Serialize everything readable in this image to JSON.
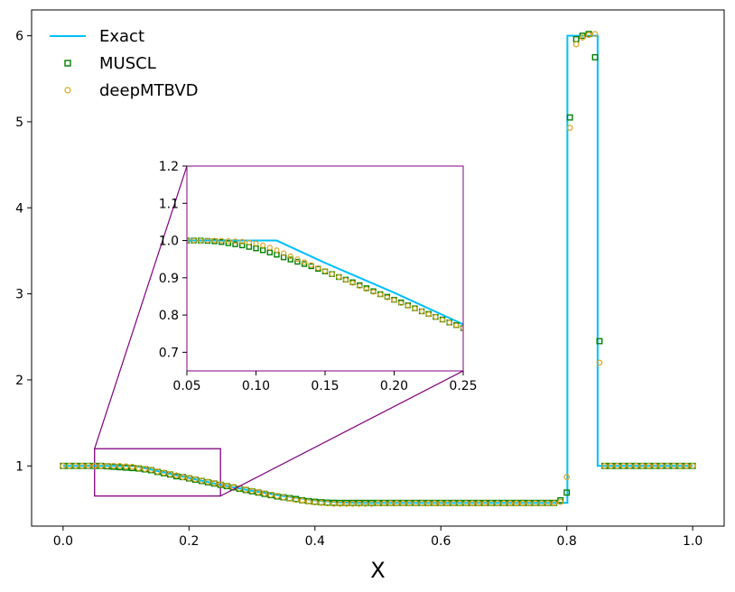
{
  "chart_data": [
    {
      "type": "line",
      "panel": "main",
      "xlabel": "X",
      "ylabel": "",
      "xlim": [
        -0.05,
        1.05
      ],
      "ylim": [
        0.3,
        6.3
      ],
      "xticks": [
        0.0,
        0.2,
        0.4,
        0.6,
        0.8,
        1.0
      ],
      "xtick_labels": [
        "0.0",
        "0.2",
        "0.4",
        "0.6",
        "0.8",
        "1.0"
      ],
      "yticks": [
        1,
        2,
        3,
        4,
        5,
        6
      ],
      "ytick_labels": [
        "1",
        "2",
        "3",
        "4",
        "5",
        "6"
      ],
      "grid": false,
      "legend": "upper-left",
      "series": [
        {
          "name": "Exact",
          "style": "line",
          "color": "#00bfff",
          "x": [
            0.0,
            0.115,
            0.15,
            0.2,
            0.25,
            0.3,
            0.35,
            0.4,
            0.44,
            0.47,
            0.5,
            0.6,
            0.7,
            0.79,
            0.801,
            0.801,
            0.849,
            0.849,
            1.0
          ],
          "y": [
            1.0,
            1.0,
            0.94,
            0.86,
            0.78,
            0.71,
            0.65,
            0.6,
            0.575,
            0.57,
            0.57,
            0.57,
            0.57,
            0.57,
            0.57,
            6.0,
            6.0,
            1.0,
            1.0
          ]
        },
        {
          "name": "MUSCL",
          "style": "marker",
          "marker": "square",
          "color": "#008000",
          "x": [
            0.0,
            0.01,
            0.02,
            0.03,
            0.04,
            0.05,
            0.06,
            0.07,
            0.08,
            0.09,
            0.1,
            0.11,
            0.12,
            0.13,
            0.14,
            0.15,
            0.16,
            0.17,
            0.18,
            0.19,
            0.2,
            0.21,
            0.22,
            0.23,
            0.24,
            0.25,
            0.26,
            0.27,
            0.28,
            0.29,
            0.3,
            0.31,
            0.32,
            0.33,
            0.34,
            0.35,
            0.36,
            0.37,
            0.38,
            0.39,
            0.4,
            0.41,
            0.42,
            0.43,
            0.44,
            0.45,
            0.46,
            0.47,
            0.48,
            0.49,
            0.5,
            0.51,
            0.52,
            0.53,
            0.54,
            0.55,
            0.56,
            0.57,
            0.58,
            0.59,
            0.6,
            0.61,
            0.62,
            0.63,
            0.64,
            0.65,
            0.66,
            0.67,
            0.68,
            0.69,
            0.7,
            0.71,
            0.72,
            0.73,
            0.74,
            0.75,
            0.76,
            0.77,
            0.78,
            0.79,
            0.8,
            0.805,
            0.815,
            0.825,
            0.835,
            0.845,
            0.852,
            0.86,
            0.87,
            0.88,
            0.89,
            0.9,
            0.91,
            0.92,
            0.93,
            0.94,
            0.95,
            0.96,
            0.97,
            0.98,
            0.99,
            1.0
          ],
          "y": [
            1.0,
            1.0,
            1.0,
            1.0,
            1.0,
            1.0,
            1.0,
            0.995,
            0.99,
            0.985,
            0.98,
            0.975,
            0.97,
            0.96,
            0.95,
            0.93,
            0.915,
            0.9,
            0.88,
            0.87,
            0.855,
            0.84,
            0.825,
            0.81,
            0.795,
            0.78,
            0.765,
            0.75,
            0.735,
            0.72,
            0.705,
            0.69,
            0.675,
            0.66,
            0.645,
            0.635,
            0.625,
            0.615,
            0.6,
            0.59,
            0.583,
            0.577,
            0.573,
            0.571,
            0.57,
            0.57,
            0.57,
            0.57,
            0.57,
            0.57,
            0.57,
            0.57,
            0.57,
            0.57,
            0.57,
            0.57,
            0.57,
            0.57,
            0.57,
            0.57,
            0.57,
            0.57,
            0.57,
            0.57,
            0.57,
            0.57,
            0.57,
            0.57,
            0.57,
            0.57,
            0.57,
            0.57,
            0.57,
            0.57,
            0.57,
            0.57,
            0.57,
            0.57,
            0.57,
            0.6,
            0.69,
            5.05,
            5.96,
            6.0,
            6.02,
            5.75,
            2.45,
            1.0,
            1.0,
            1.0,
            1.0,
            1.0,
            1.0,
            1.0,
            1.0,
            1.0,
            1.0,
            1.0,
            1.0,
            1.0,
            1.0,
            1.0
          ]
        },
        {
          "name": "deepMTBVD",
          "style": "marker",
          "marker": "circle",
          "color": "#daa520",
          "x": [
            0.0,
            0.01,
            0.02,
            0.03,
            0.04,
            0.05,
            0.06,
            0.07,
            0.08,
            0.09,
            0.1,
            0.11,
            0.12,
            0.13,
            0.14,
            0.15,
            0.16,
            0.17,
            0.18,
            0.19,
            0.2,
            0.21,
            0.22,
            0.23,
            0.24,
            0.25,
            0.26,
            0.27,
            0.28,
            0.29,
            0.3,
            0.31,
            0.32,
            0.33,
            0.34,
            0.35,
            0.36,
            0.37,
            0.38,
            0.39,
            0.4,
            0.41,
            0.42,
            0.43,
            0.44,
            0.45,
            0.46,
            0.47,
            0.48,
            0.49,
            0.5,
            0.51,
            0.52,
            0.53,
            0.54,
            0.55,
            0.56,
            0.57,
            0.58,
            0.59,
            0.6,
            0.61,
            0.62,
            0.63,
            0.64,
            0.65,
            0.66,
            0.67,
            0.68,
            0.69,
            0.7,
            0.71,
            0.72,
            0.73,
            0.74,
            0.75,
            0.76,
            0.77,
            0.78,
            0.79,
            0.8,
            0.805,
            0.815,
            0.825,
            0.835,
            0.845,
            0.852,
            0.86,
            0.87,
            0.88,
            0.89,
            0.9,
            0.91,
            0.92,
            0.93,
            0.94,
            0.95,
            0.96,
            0.97,
            0.98,
            0.99,
            1.0
          ],
          "y": [
            1.0,
            1.0,
            1.0,
            1.0,
            1.0,
            1.0,
            1.0,
            1.0,
            1.0,
            1.0,
            0.995,
            0.99,
            0.975,
            0.965,
            0.955,
            0.935,
            0.92,
            0.905,
            0.89,
            0.87,
            0.86,
            0.845,
            0.83,
            0.815,
            0.8,
            0.785,
            0.77,
            0.755,
            0.74,
            0.725,
            0.71,
            0.695,
            0.68,
            0.665,
            0.65,
            0.635,
            0.62,
            0.605,
            0.595,
            0.585,
            0.575,
            0.57,
            0.565,
            0.56,
            0.56,
            0.56,
            0.56,
            0.56,
            0.56,
            0.56,
            0.565,
            0.565,
            0.565,
            0.565,
            0.565,
            0.565,
            0.565,
            0.565,
            0.565,
            0.565,
            0.565,
            0.565,
            0.565,
            0.565,
            0.565,
            0.565,
            0.565,
            0.565,
            0.565,
            0.565,
            0.565,
            0.565,
            0.565,
            0.565,
            0.565,
            0.565,
            0.565,
            0.565,
            0.565,
            0.58,
            0.87,
            4.93,
            5.9,
            5.98,
            6.01,
            6.02,
            2.2,
            1.0,
            1.0,
            1.0,
            1.0,
            1.0,
            1.0,
            1.0,
            1.0,
            1.0,
            1.0,
            1.0,
            1.0,
            1.0,
            1.0,
            1.0
          ]
        }
      ],
      "zoom_region": {
        "xlim": [
          0.05,
          0.25
        ],
        "ylim": [
          0.65,
          1.2
        ]
      },
      "zoom_color": "#800080"
    },
    {
      "type": "line",
      "panel": "inset",
      "xlim": [
        0.05,
        0.25
      ],
      "ylim": [
        0.65,
        1.2
      ],
      "xticks": [
        0.05,
        0.1,
        0.15,
        0.2,
        0.25
      ],
      "xtick_labels": [
        "0.05",
        "0.10",
        "0.15",
        "0.20",
        "0.25"
      ],
      "yticks": [
        0.7,
        0.8,
        0.9,
        1.0,
        1.1,
        1.2
      ],
      "ytick_labels": [
        "0.7",
        "0.8",
        "0.9",
        "1.0",
        "1.1",
        "1.2"
      ],
      "series": [
        {
          "name": "Exact",
          "style": "line",
          "color": "#00bfff",
          "x": [
            0.05,
            0.115,
            0.15,
            0.2,
            0.25
          ],
          "y": [
            1.0,
            1.0,
            0.94,
            0.86,
            0.775
          ]
        },
        {
          "name": "MUSCL",
          "style": "marker",
          "marker": "square",
          "color": "#008000",
          "x": [
            0.05,
            0.055,
            0.06,
            0.065,
            0.07,
            0.075,
            0.08,
            0.085,
            0.09,
            0.095,
            0.1,
            0.105,
            0.11,
            0.115,
            0.12,
            0.125,
            0.13,
            0.135,
            0.14,
            0.145,
            0.15,
            0.155,
            0.16,
            0.165,
            0.17,
            0.175,
            0.18,
            0.185,
            0.19,
            0.195,
            0.2,
            0.205,
            0.21,
            0.215,
            0.22,
            0.225,
            0.23,
            0.235,
            0.24,
            0.245,
            0.25
          ],
          "y": [
            1.0,
            1.0,
            1.0,
            0.999,
            0.998,
            0.996,
            0.993,
            0.99,
            0.987,
            0.983,
            0.979,
            0.974,
            0.968,
            0.962,
            0.955,
            0.949,
            0.943,
            0.937,
            0.931,
            0.924,
            0.917,
            0.91,
            0.902,
            0.895,
            0.888,
            0.88,
            0.872,
            0.864,
            0.856,
            0.849,
            0.841,
            0.834,
            0.826,
            0.818,
            0.81,
            0.803,
            0.795,
            0.788,
            0.78,
            0.773,
            0.765
          ]
        },
        {
          "name": "deepMTBVD",
          "style": "marker",
          "marker": "circle",
          "color": "#daa520",
          "x": [
            0.05,
            0.055,
            0.06,
            0.065,
            0.07,
            0.075,
            0.08,
            0.085,
            0.09,
            0.095,
            0.1,
            0.105,
            0.11,
            0.115,
            0.12,
            0.125,
            0.13,
            0.135,
            0.14,
            0.145,
            0.15,
            0.155,
            0.16,
            0.165,
            0.17,
            0.175,
            0.18,
            0.185,
            0.19,
            0.195,
            0.2,
            0.205,
            0.21,
            0.215,
            0.22,
            0.225,
            0.23,
            0.235,
            0.24,
            0.245,
            0.25
          ],
          "y": [
            1.0,
            1.0,
            1.0,
            1.0,
            1.0,
            1.0,
            0.999,
            0.998,
            0.997,
            0.995,
            0.992,
            0.987,
            0.981,
            0.974,
            0.966,
            0.958,
            0.95,
            0.942,
            0.934,
            0.926,
            0.918,
            0.91,
            0.902,
            0.894,
            0.886,
            0.878,
            0.87,
            0.862,
            0.855,
            0.847,
            0.84,
            0.832,
            0.825,
            0.817,
            0.81,
            0.802,
            0.795,
            0.787,
            0.78,
            0.772,
            0.765
          ]
        }
      ]
    }
  ]
}
